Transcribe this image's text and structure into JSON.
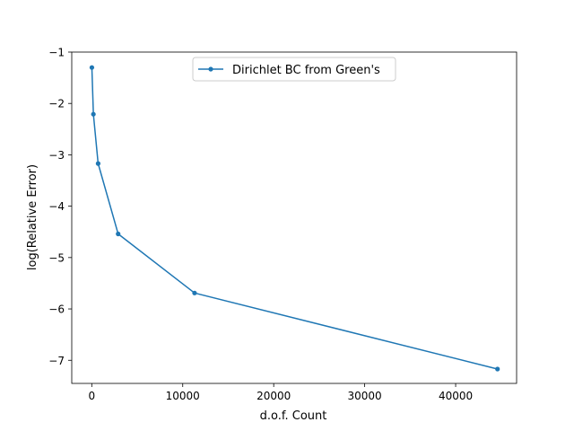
{
  "chart_data": {
    "type": "line",
    "title": "",
    "xlabel": "d.o.f. Count",
    "ylabel": "log(Relative Error)",
    "xlim": [
      -2200,
      46700
    ],
    "ylim": [
      -7.45,
      -1.0
    ],
    "xticks": [
      {
        "value": 0,
        "label": "0"
      },
      {
        "value": 10000,
        "label": "10000"
      },
      {
        "value": 20000,
        "label": "20000"
      },
      {
        "value": 30000,
        "label": "30000"
      },
      {
        "value": 40000,
        "label": "40000"
      }
    ],
    "yticks": [
      {
        "value": -1,
        "label": "−1"
      },
      {
        "value": -2,
        "label": "−2"
      },
      {
        "value": -3,
        "label": "−3"
      },
      {
        "value": -4,
        "label": "−4"
      },
      {
        "value": -5,
        "label": "−5"
      },
      {
        "value": -6,
        "label": "−6"
      },
      {
        "value": -7,
        "label": "−7"
      }
    ],
    "grid": false,
    "legend_position": "upper center",
    "series": [
      {
        "name": "Dirichlet BC from Green's",
        "color": "#1f77b4",
        "marker": "dot",
        "x": [
          12,
          180,
          700,
          2900,
          11300,
          44600
        ],
        "y": [
          -1.3,
          -2.21,
          -3.17,
          -4.54,
          -5.69,
          -7.17
        ]
      }
    ]
  }
}
